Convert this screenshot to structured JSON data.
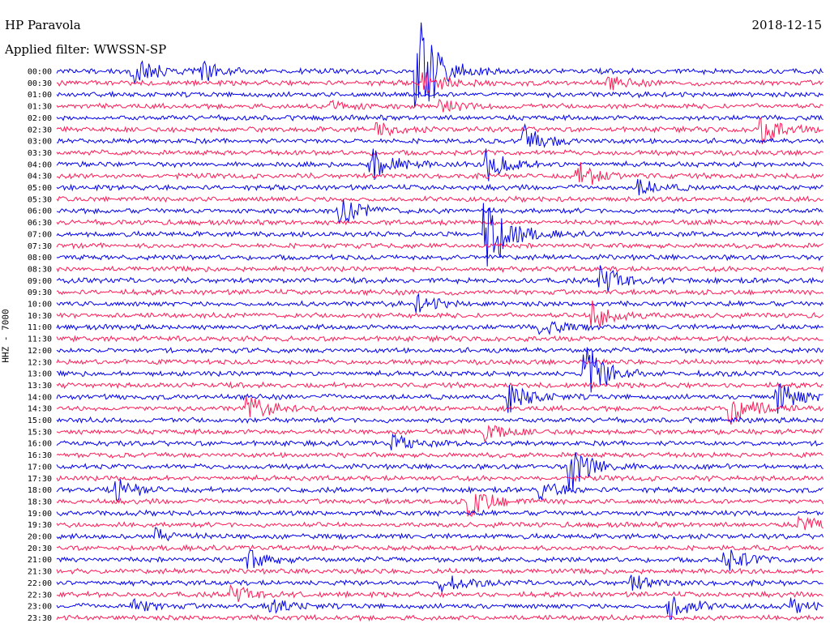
{
  "header": {
    "station": "HP Paravola",
    "date": "2018-12-15",
    "filter": "Applied filter: WWSSN-SP"
  },
  "channel_label": "HHZ - 7000",
  "colors": {
    "even": "#0000ee",
    "odd": "#ff1a55",
    "text": "#000000",
    "background": "#ffffff"
  },
  "chart_data": {
    "type": "line",
    "chart_kind": "helicorder",
    "title": "HP Paravola",
    "subtitle": "Applied filter: WWSSN-SP",
    "ylabel": "HHZ - 7000",
    "line_times": [
      "00:00",
      "00:30",
      "01:00",
      "01:30",
      "02:00",
      "02:30",
      "03:00",
      "03:30",
      "04:00",
      "04:30",
      "05:00",
      "05:30",
      "06:00",
      "06:30",
      "07:00",
      "07:30",
      "08:00",
      "08:30",
      "09:00",
      "09:30",
      "10:00",
      "10:30",
      "11:00",
      "11:30",
      "12:00",
      "12:30",
      "13:00",
      "13:30",
      "14:00",
      "14:30",
      "15:00",
      "15:30",
      "16:00",
      "16:30",
      "17:00",
      "17:30",
      "18:00",
      "18:30",
      "19:00",
      "19:30",
      "20:00",
      "20:30",
      "21:00",
      "21:30",
      "22:00",
      "22:30",
      "23:00",
      "23:30"
    ],
    "series_colors": [
      "#0000ee",
      "#ff1a55"
    ],
    "line_span_minutes": 30,
    "events": [
      {
        "line": 0,
        "t": 0.1,
        "amp": 2.2
      },
      {
        "line": 0,
        "t": 0.19,
        "amp": 1.4
      },
      {
        "line": 0,
        "t": 0.47,
        "amp": 8.0
      },
      {
        "line": 1,
        "t": 0.48,
        "amp": 1.6
      },
      {
        "line": 1,
        "t": 0.72,
        "amp": 0.8
      },
      {
        "line": 3,
        "t": 0.36,
        "amp": 0.7
      },
      {
        "line": 3,
        "t": 0.5,
        "amp": 0.8
      },
      {
        "line": 5,
        "t": 0.42,
        "amp": 0.8
      },
      {
        "line": 5,
        "t": 0.92,
        "amp": 1.8
      },
      {
        "line": 6,
        "t": 0.61,
        "amp": 2.0
      },
      {
        "line": 8,
        "t": 0.41,
        "amp": 2.6
      },
      {
        "line": 8,
        "t": 0.56,
        "amp": 2.3
      },
      {
        "line": 9,
        "t": 0.68,
        "amp": 1.8
      },
      {
        "line": 10,
        "t": 0.76,
        "amp": 1.0
      },
      {
        "line": 12,
        "t": 0.37,
        "amp": 2.0
      },
      {
        "line": 14,
        "t": 0.56,
        "amp": 6.0
      },
      {
        "line": 18,
        "t": 0.71,
        "amp": 2.0
      },
      {
        "line": 20,
        "t": 0.47,
        "amp": 1.2
      },
      {
        "line": 21,
        "t": 0.7,
        "amp": 2.5
      },
      {
        "line": 22,
        "t": 0.63,
        "amp": 1.1
      },
      {
        "line": 26,
        "t": 0.69,
        "amp": 4.0
      },
      {
        "line": 28,
        "t": 0.59,
        "amp": 2.0
      },
      {
        "line": 28,
        "t": 0.94,
        "amp": 2.2
      },
      {
        "line": 29,
        "t": 0.25,
        "amp": 1.6
      },
      {
        "line": 29,
        "t": 0.88,
        "amp": 2.5
      },
      {
        "line": 31,
        "t": 0.56,
        "amp": 1.2
      },
      {
        "line": 32,
        "t": 0.44,
        "amp": 1.0
      },
      {
        "line": 34,
        "t": 0.67,
        "amp": 3.5
      },
      {
        "line": 36,
        "t": 0.08,
        "amp": 1.3
      },
      {
        "line": 36,
        "t": 0.63,
        "amp": 1.1
      },
      {
        "line": 37,
        "t": 0.54,
        "amp": 2.2
      },
      {
        "line": 39,
        "t": 0.97,
        "amp": 1.2
      },
      {
        "line": 40,
        "t": 0.13,
        "amp": 1.0
      },
      {
        "line": 42,
        "t": 0.25,
        "amp": 1.3
      },
      {
        "line": 42,
        "t": 0.87,
        "amp": 1.7
      },
      {
        "line": 44,
        "t": 0.5,
        "amp": 1.2
      },
      {
        "line": 44,
        "t": 0.75,
        "amp": 1.0
      },
      {
        "line": 45,
        "t": 0.23,
        "amp": 1.1
      },
      {
        "line": 46,
        "t": 0.1,
        "amp": 0.9
      },
      {
        "line": 46,
        "t": 0.28,
        "amp": 1.0
      },
      {
        "line": 46,
        "t": 0.8,
        "amp": 1.8
      },
      {
        "line": 46,
        "t": 0.96,
        "amp": 0.8
      }
    ]
  }
}
